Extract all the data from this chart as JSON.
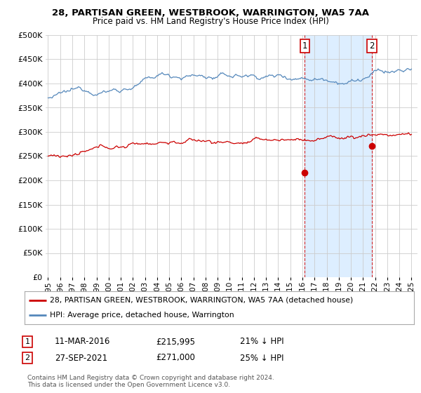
{
  "title": "28, PARTISAN GREEN, WESTBROOK, WARRINGTON, WA5 7AA",
  "subtitle": "Price paid vs. HM Land Registry's House Price Index (HPI)",
  "ylim": [
    0,
    500000
  ],
  "yticks": [
    0,
    50000,
    100000,
    150000,
    200000,
    250000,
    300000,
    350000,
    400000,
    450000,
    500000
  ],
  "xlim_start": 1994.8,
  "xlim_end": 2025.5,
  "line1_color": "#cc0000",
  "line2_color": "#5588bb",
  "point1_x": 2016.19,
  "point1_y": 215995,
  "point2_x": 2021.74,
  "point2_y": 271000,
  "vline1_x": 2016.19,
  "vline2_x": 2021.74,
  "vline_color": "#cc0000",
  "shade_color": "#ddeeff",
  "label1_num": "1",
  "label1_date": "11-MAR-2016",
  "label1_price": "£215,995",
  "label1_hpi": "21% ↓ HPI",
  "label2_num": "2",
  "label2_date": "27-SEP-2021",
  "label2_price": "£271,000",
  "label2_hpi": "25% ↓ HPI",
  "legend_line1": "28, PARTISAN GREEN, WESTBROOK, WARRINGTON, WA5 7AA (detached house)",
  "legend_line2": "HPI: Average price, detached house, Warrington",
  "footer": "Contains HM Land Registry data © Crown copyright and database right 2024.\nThis data is licensed under the Open Government Licence v3.0.",
  "background_color": "#ffffff",
  "grid_color": "#cccccc"
}
